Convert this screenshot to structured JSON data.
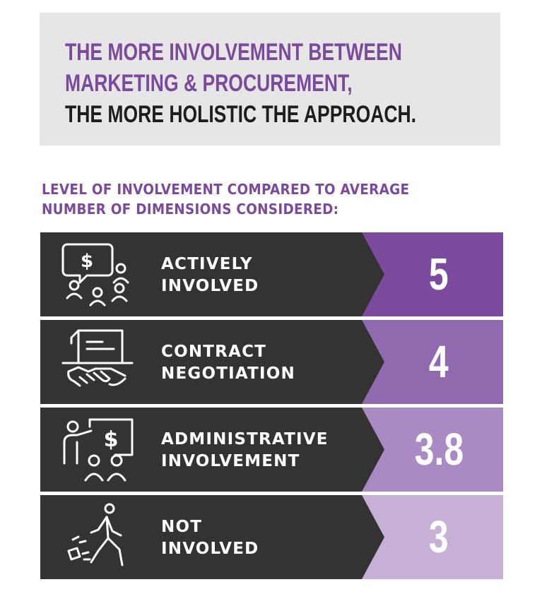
{
  "headline": {
    "line1": "THE MORE INVOLVEMENT BETWEEN",
    "line2": "MARKETING & PROCUREMENT,",
    "line3": "THE MORE HOLISTIC THE APPROACH."
  },
  "subhead": {
    "line1": "LEVEL OF INVOLVEMENT COMPARED TO AVERAGE",
    "line2": "NUMBER OF DIMENSIONS CONSIDERED:"
  },
  "rows": [
    {
      "label_line1": "ACTIVELY",
      "label_line2": "INVOLVED",
      "value": "5",
      "icon": "money-chat-group-icon",
      "color": "#7b4a9c"
    },
    {
      "label_line1": "CONTRACT",
      "label_line2": "NEGOTIATION",
      "value": "4",
      "icon": "handshake-contract-icon",
      "color": "#9169af"
    },
    {
      "label_line1": "ADMINISTRATIVE",
      "label_line2": "INVOLVEMENT",
      "value": "3.8",
      "icon": "presentation-audience-icon",
      "color": "#a98ac2"
    },
    {
      "label_line1": "NOT",
      "label_line2": "INVOLVED",
      "value": "3",
      "icon": "walking-away-icon",
      "color": "#c6b0d6"
    }
  ],
  "colors": {
    "accent": "#7b4a9c",
    "row_background": "#333333",
    "headline_box": "#e6e6e6"
  }
}
